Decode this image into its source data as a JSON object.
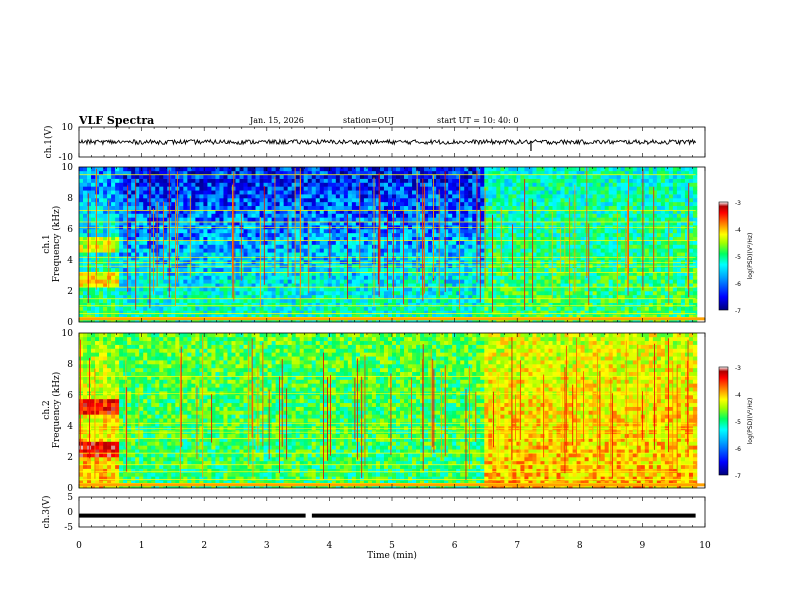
{
  "header": {
    "title": "VLF Spectra",
    "date": "Jan. 15, 2026",
    "station": "station=OUJ",
    "start": "start  UT =   10: 40: 0"
  },
  "colors": {
    "colormap": [
      "#00007a",
      "#0000ff",
      "#00a0ff",
      "#00ffff",
      "#00ff60",
      "#a0ff00",
      "#ffff00",
      "#ff8000",
      "#ff0000",
      "#b00000",
      "#ffffff"
    ]
  },
  "chart_data": [
    {
      "type": "line",
      "name": "ch1-waveform",
      "ylabel": "ch.1(V)",
      "ylim": [
        -10,
        10
      ],
      "y_ticks": [
        "10",
        "-10"
      ],
      "baseline": 0,
      "noise_amplitude": 1.5,
      "spikes": [
        {
          "x": 7.22,
          "y": -6
        }
      ]
    },
    {
      "type": "heatmap",
      "name": "ch1-spectrogram",
      "ylabel_line1": "ch.1",
      "ylabel_line2": "Frequency (kHz)",
      "ylim": [
        0,
        10
      ],
      "y_ticks": [
        "0",
        "2",
        "4",
        "6",
        "8",
        "10"
      ],
      "xlim": [
        0,
        10
      ],
      "colorbar": {
        "label": "log(PSD)(V²/Hz)",
        "range": [
          -7,
          -3
        ],
        "ticks": [
          "-3",
          "-4",
          "-5",
          "-6",
          "-7"
        ]
      },
      "segments": [
        {
          "x": [
            0,
            0.67
          ],
          "level_low": -5.4,
          "level_high": -6.2,
          "band_bursts_khz": [
            2.7,
            5.0
          ]
        },
        {
          "x": [
            0.67,
            6.45
          ],
          "level_low": -5.6,
          "level_high": -6.6
        },
        {
          "x": [
            6.45,
            9.85
          ],
          "level_low": -5.3,
          "level_high": -5.7
        }
      ],
      "lines_khz": [
        0.3,
        0.55,
        1.05,
        1.5,
        2.25,
        3.2,
        3.6,
        3.85,
        4.15,
        5.25,
        6.1,
        6.45,
        7.2,
        9.5
      ]
    },
    {
      "type": "heatmap",
      "name": "ch2-spectrogram",
      "ylabel_line1": "ch.2",
      "ylabel_line2": "Frequency (kHz)",
      "ylim": [
        0,
        10
      ],
      "y_ticks": [
        "0",
        "2",
        "4",
        "6",
        "8",
        "10"
      ],
      "xlim": [
        0,
        10
      ],
      "colorbar": {
        "label": "log(PSD)(V²/Hz)",
        "range": [
          -7,
          -3
        ],
        "ticks": [
          "-3",
          "-4",
          "-5",
          "-6",
          "-7"
        ]
      },
      "segments": [
        {
          "x": [
            0,
            0.67
          ],
          "level_low": -4.4,
          "level_high": -5.0,
          "band_bursts_khz": [
            2.5,
            5.2
          ]
        },
        {
          "x": [
            0.67,
            6.45
          ],
          "level_low": -5.4,
          "level_high": -5.2
        },
        {
          "x": [
            6.45,
            9.85
          ],
          "level_low": -4.4,
          "level_high": -4.8
        }
      ],
      "lines_khz": [
        0.3,
        0.55,
        1.05,
        1.5,
        2.25,
        3.2,
        3.6,
        3.85,
        4.15,
        6.1,
        7.2
      ]
    },
    {
      "type": "line",
      "name": "ch3-waveform",
      "ylabel": "ch.3(V)",
      "ylim": [
        -5,
        5
      ],
      "y_ticks": [
        "5",
        "0",
        "-5"
      ],
      "baseline": -1.2,
      "gap": [
        3.62,
        3.72
      ]
    }
  ],
  "x_axis": {
    "label": "Time  (min)",
    "ticks": [
      "0",
      "1",
      "2",
      "3",
      "4",
      "5",
      "6",
      "7",
      "8",
      "9",
      "10"
    ],
    "xlim": [
      0,
      10
    ]
  }
}
